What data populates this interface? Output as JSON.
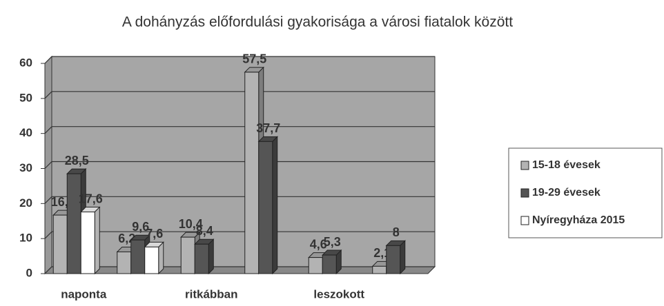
{
  "chart_data": {
    "type": "bar3d",
    "title": "A dohányzás előfordulási gyakorisága a városi fiatalok között",
    "categories": [
      "naponta",
      null,
      "ritkábban",
      null,
      "leszokott",
      null
    ],
    "series": [
      {
        "name": "15-18 évesek",
        "color": "#b3b3b3",
        "values": [
          16.7,
          6.2,
          10.4,
          57.5,
          4.6,
          2.1
        ],
        "value_labels": [
          "16,7",
          "6,2",
          "10,4",
          "57,5",
          "4,6",
          "2,1"
        ]
      },
      {
        "name": "19-29 évesek",
        "color": "#555555",
        "values": [
          28.5,
          9.6,
          8.4,
          37.7,
          5.3,
          8
        ],
        "value_labels": [
          "28,5",
          "9,6",
          "8,4",
          "37,7",
          "5,3",
          "8"
        ]
      },
      {
        "name": "Nyíregyháza 2015",
        "color": "#ffffff",
        "values": [
          17.6,
          7.6,
          null,
          null,
          null,
          null
        ],
        "value_labels": [
          "17,6",
          "7,6",
          null,
          null,
          null,
          null
        ]
      }
    ],
    "ylim": [
      0,
      60
    ],
    "yticks": [
      0,
      10,
      20,
      30,
      40,
      50,
      60
    ],
    "grid": true,
    "legend": "right"
  }
}
